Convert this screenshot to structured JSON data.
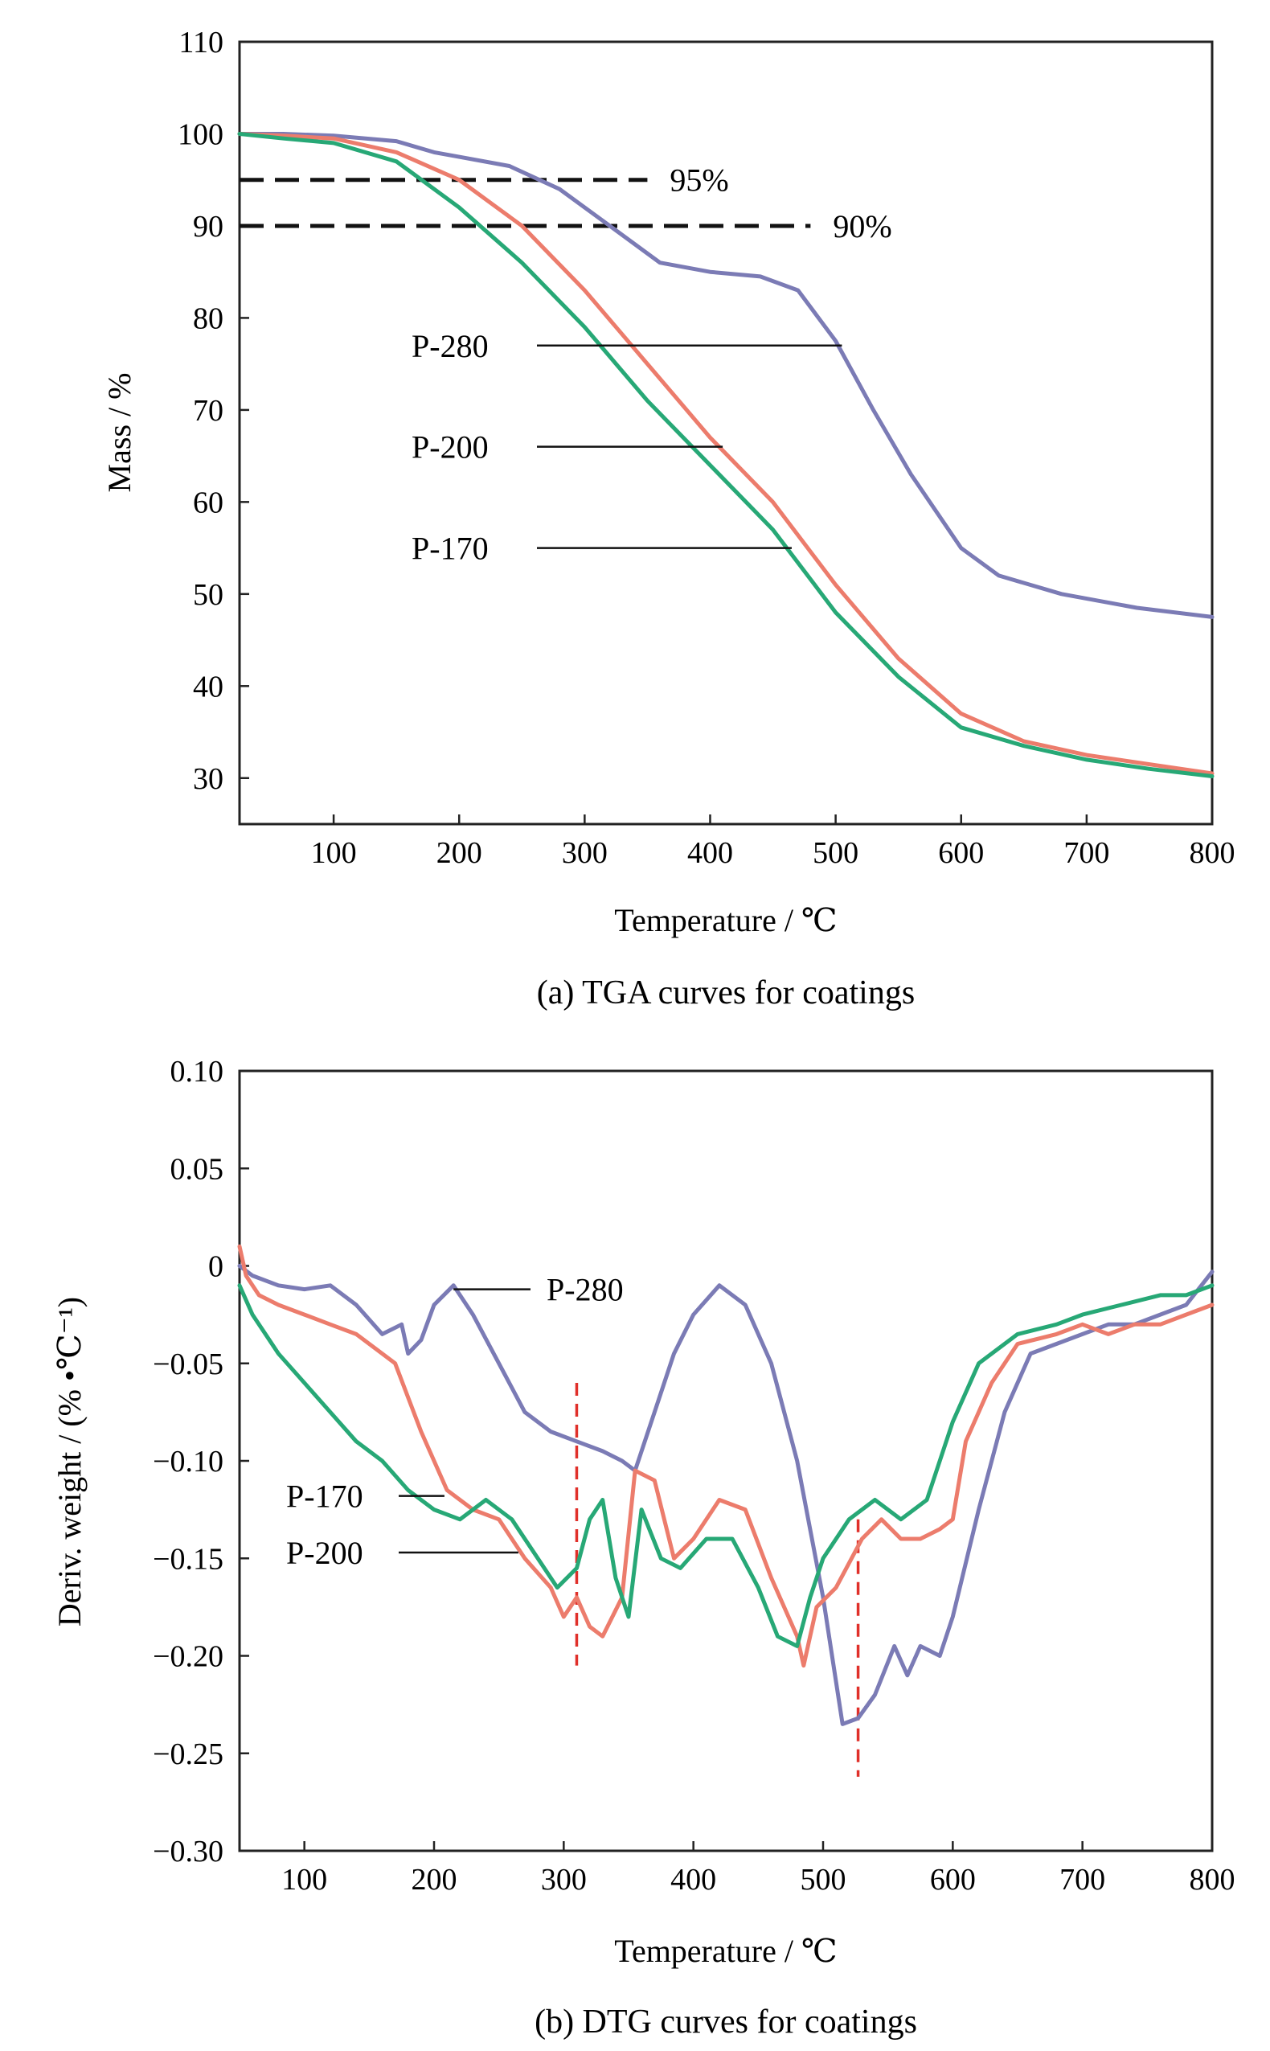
{
  "chart_data": [
    {
      "type": "line",
      "caption": "(a) TGA curves for coatings",
      "xlabel": "Temperature / ℃",
      "ylabel": "Mass / %",
      "xlim": [
        25,
        800
      ],
      "ylim": [
        25,
        110
      ],
      "xticks": [
        100,
        200,
        300,
        400,
        500,
        600,
        700,
        800
      ],
      "yticks": [
        30,
        40,
        50,
        60,
        70,
        80,
        90,
        100,
        110
      ],
      "grid": false,
      "reference_lines": [
        {
          "label": "95%",
          "y": 95,
          "x_from": 25,
          "x_to": 350
        },
        {
          "label": "90%",
          "y": 90,
          "x_from": 25,
          "x_to": 480
        }
      ],
      "series": [
        {
          "name": "P-280",
          "color": "#7b7bb5",
          "label_at": [
            505,
            77
          ],
          "x": [
            25,
            60,
            100,
            150,
            180,
            200,
            240,
            280,
            320,
            360,
            400,
            440,
            470,
            500,
            530,
            560,
            600,
            630,
            680,
            740,
            800
          ],
          "y": [
            100,
            100,
            99.8,
            99.2,
            98,
            97.5,
            96.5,
            94,
            90,
            86,
            85,
            84.5,
            83,
            77.5,
            70,
            63,
            55,
            52,
            50,
            48.5,
            47.5
          ]
        },
        {
          "name": "P-200",
          "color": "#ec7c6c",
          "label_at": [
            410,
            66
          ],
          "x": [
            25,
            60,
            100,
            150,
            200,
            250,
            300,
            350,
            400,
            450,
            500,
            550,
            600,
            650,
            700,
            750,
            800
          ],
          "y": [
            100,
            99.8,
            99.5,
            98,
            95,
            90,
            83,
            75,
            67,
            60,
            51,
            43,
            37,
            34,
            32.5,
            31.5,
            30.5
          ]
        },
        {
          "name": "P-170",
          "color": "#27a876",
          "label_at": [
            465,
            55
          ],
          "x": [
            25,
            60,
            100,
            150,
            200,
            250,
            300,
            350,
            400,
            450,
            500,
            550,
            600,
            650,
            700,
            750,
            800
          ],
          "y": [
            100,
            99.5,
            99,
            97,
            92,
            86,
            79,
            71,
            64,
            57,
            48,
            41,
            35.5,
            33.5,
            32,
            31,
            30.2
          ]
        }
      ]
    },
    {
      "type": "line",
      "caption": "(b) DTG curves for coatings",
      "xlabel": "Temperature / ℃",
      "ylabel": "Deriv. weight / (% •℃⁻¹)",
      "xlim": [
        50,
        800
      ],
      "ylim": [
        -0.3,
        0.1
      ],
      "xticks": [
        100,
        200,
        300,
        400,
        500,
        600,
        700,
        800
      ],
      "yticks": [
        0.1,
        0.05,
        0,
        -0.05,
        -0.1,
        -0.15,
        -0.2,
        -0.25,
        -0.3
      ],
      "ytick_labels": [
        "0.10",
        "0.05",
        "0",
        "−0.05",
        "−0.10",
        "−0.15",
        "−0.20",
        "−0.25",
        "−0.30"
      ],
      "grid": false,
      "marker_lines": [
        {
          "x": 310,
          "y_from": -0.06,
          "y_to": -0.205,
          "color": "#e0302a"
        },
        {
          "x": 527,
          "y_from": -0.13,
          "y_to": -0.262,
          "color": "#e0302a"
        }
      ],
      "series": [
        {
          "name": "P-280",
          "color": "#7b7bb5",
          "label_at": [
            215,
            -0.012
          ],
          "x": [
            50,
            60,
            80,
            100,
            120,
            140,
            160,
            175,
            180,
            190,
            200,
            215,
            230,
            250,
            270,
            290,
            310,
            330,
            345,
            355,
            370,
            385,
            400,
            420,
            440,
            460,
            480,
            500,
            515,
            527,
            540,
            555,
            565,
            575,
            590,
            600,
            620,
            640,
            660,
            680,
            700,
            720,
            740,
            760,
            780,
            800
          ],
          "y": [
            0,
            -0.005,
            -0.01,
            -0.012,
            -0.01,
            -0.02,
            -0.035,
            -0.03,
            -0.045,
            -0.038,
            -0.02,
            -0.01,
            -0.025,
            -0.05,
            -0.075,
            -0.085,
            -0.09,
            -0.095,
            -0.1,
            -0.105,
            -0.075,
            -0.045,
            -0.025,
            -0.01,
            -0.02,
            -0.05,
            -0.1,
            -0.17,
            -0.235,
            -0.232,
            -0.22,
            -0.195,
            -0.21,
            -0.195,
            -0.2,
            -0.18,
            -0.125,
            -0.075,
            -0.045,
            -0.04,
            -0.035,
            -0.03,
            -0.03,
            -0.025,
            -0.02,
            -0.003
          ]
        },
        {
          "name": "P-200",
          "color": "#ec7c6c",
          "label_at": [
            265,
            -0.147
          ],
          "x": [
            50,
            55,
            65,
            80,
            100,
            120,
            140,
            160,
            170,
            190,
            210,
            230,
            250,
            270,
            290,
            300,
            310,
            320,
            330,
            345,
            355,
            370,
            385,
            400,
            420,
            440,
            460,
            480,
            485,
            495,
            510,
            530,
            545,
            560,
            575,
            590,
            600,
            610,
            630,
            650,
            680,
            700,
            720,
            740,
            760,
            780,
            800
          ],
          "y": [
            0.01,
            -0.005,
            -0.015,
            -0.02,
            -0.025,
            -0.03,
            -0.035,
            -0.045,
            -0.05,
            -0.085,
            -0.115,
            -0.125,
            -0.13,
            -0.15,
            -0.165,
            -0.18,
            -0.17,
            -0.185,
            -0.19,
            -0.17,
            -0.105,
            -0.11,
            -0.15,
            -0.14,
            -0.12,
            -0.125,
            -0.16,
            -0.19,
            -0.205,
            -0.175,
            -0.165,
            -0.14,
            -0.13,
            -0.14,
            -0.14,
            -0.135,
            -0.13,
            -0.09,
            -0.06,
            -0.04,
            -0.035,
            -0.03,
            -0.035,
            -0.03,
            -0.03,
            -0.025,
            -0.02
          ]
        },
        {
          "name": "P-170",
          "color": "#27a876",
          "label_at": [
            208,
            -0.118
          ],
          "x": [
            50,
            60,
            80,
            100,
            120,
            140,
            160,
            180,
            200,
            220,
            240,
            260,
            280,
            295,
            310,
            320,
            330,
            340,
            350,
            360,
            375,
            390,
            410,
            430,
            450,
            465,
            480,
            490,
            500,
            520,
            540,
            560,
            580,
            600,
            620,
            650,
            680,
            700,
            730,
            760,
            780,
            800
          ],
          "y": [
            -0.01,
            -0.025,
            -0.045,
            -0.06,
            -0.075,
            -0.09,
            -0.1,
            -0.115,
            -0.125,
            -0.13,
            -0.12,
            -0.13,
            -0.15,
            -0.165,
            -0.155,
            -0.13,
            -0.12,
            -0.16,
            -0.18,
            -0.125,
            -0.15,
            -0.155,
            -0.14,
            -0.14,
            -0.165,
            -0.19,
            -0.195,
            -0.17,
            -0.15,
            -0.13,
            -0.12,
            -0.13,
            -0.12,
            -0.08,
            -0.05,
            -0.035,
            -0.03,
            -0.025,
            -0.02,
            -0.015,
            -0.015,
            -0.01
          ]
        }
      ]
    }
  ]
}
